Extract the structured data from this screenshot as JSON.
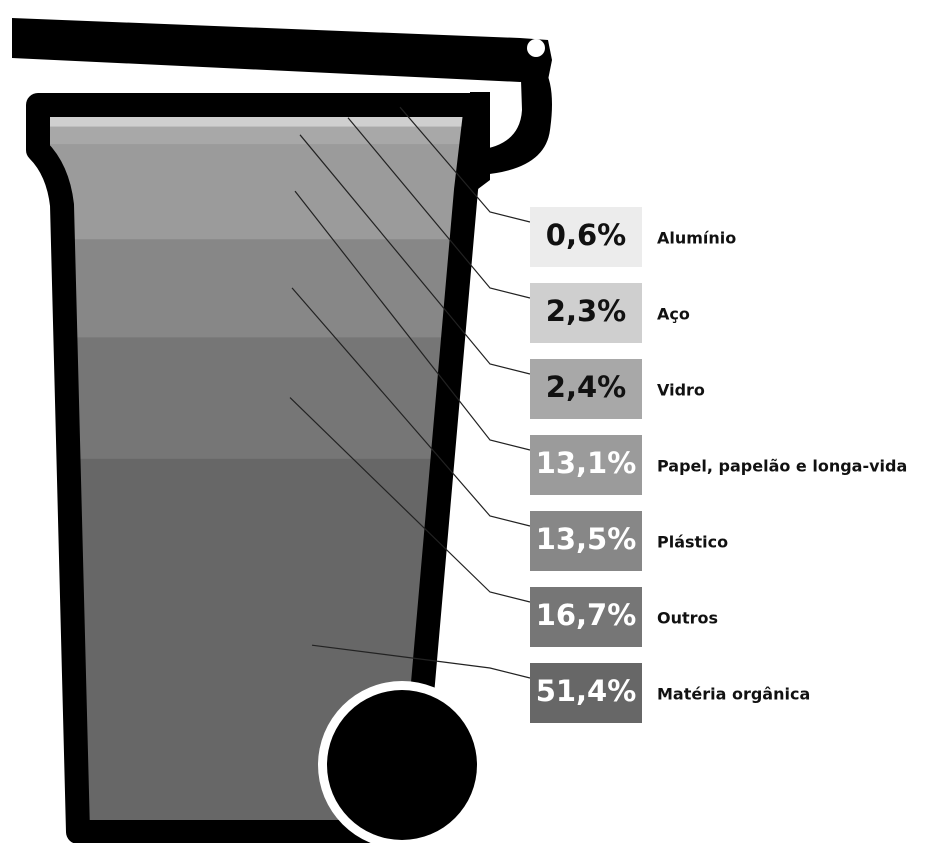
{
  "chart_data": {
    "type": "bin",
    "categories": [
      "Alumínio",
      "Aço",
      "Vidro",
      "Papel, papelão e longa-vida",
      "Plástico",
      "Outros",
      "Matéria orgânica"
    ],
    "values": [
      0.6,
      2.3,
      2.4,
      13.1,
      13.5,
      16.7,
      51.4
    ],
    "value_labels": [
      "0,6%",
      "2,3%",
      "2,4%",
      "13,1%",
      "13,5%",
      "16,7%",
      "51,4%"
    ],
    "colors": [
      "#ececec",
      "#cfcfcf",
      "#a8a8a8",
      "#9b9b9b",
      "#878787",
      "#767676",
      "#676767"
    ]
  }
}
